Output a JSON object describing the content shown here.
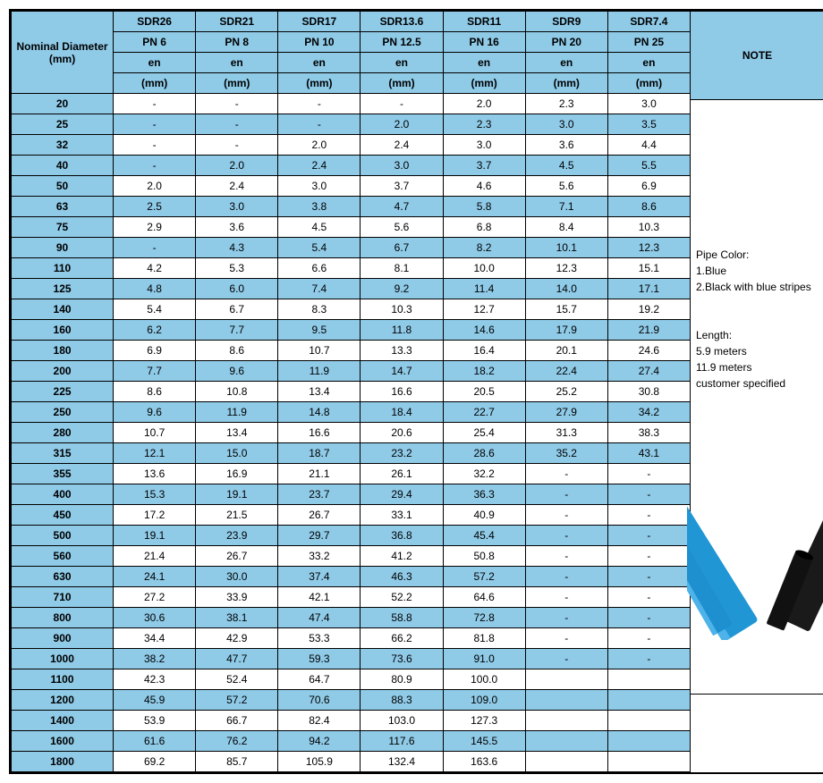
{
  "header": {
    "nominal": "Nominal Diameter (mm)",
    "note": "NOTE",
    "sdr": [
      "SDR26",
      "SDR21",
      "SDR17",
      "SDR13.6",
      "SDR11",
      "SDR9",
      "SDR7.4"
    ],
    "pn": [
      "PN 6",
      "PN 8",
      "PN 10",
      "PN 12.5",
      "PN 16",
      "PN 20",
      "PN 25"
    ],
    "en": "en",
    "en_unit": "(mm)"
  },
  "colors": {
    "header_bg": "#8fcae7",
    "border": "#000000",
    "alt_bg": "#8fcae7",
    "text": "#000000",
    "pipe_blue": "#2196d5",
    "pipe_black": "#1a1a1a"
  },
  "rows": [
    {
      "d": "20",
      "v": [
        "-",
        "-",
        "-",
        "-",
        "2.0",
        "2.3",
        "3.0"
      ],
      "alt": false
    },
    {
      "d": "25",
      "v": [
        "-",
        "-",
        "-",
        "2.0",
        "2.3",
        "3.0",
        "3.5"
      ],
      "alt": true
    },
    {
      "d": "32",
      "v": [
        "-",
        "-",
        "2.0",
        "2.4",
        "3.0",
        "3.6",
        "4.4"
      ],
      "alt": false
    },
    {
      "d": "40",
      "v": [
        "-",
        "2.0",
        "2.4",
        "3.0",
        "3.7",
        "4.5",
        "5.5"
      ],
      "alt": true
    },
    {
      "d": "50",
      "v": [
        "2.0",
        "2.4",
        "3.0",
        "3.7",
        "4.6",
        "5.6",
        "6.9"
      ],
      "alt": false
    },
    {
      "d": "63",
      "v": [
        "2.5",
        "3.0",
        "3.8",
        "4.7",
        "5.8",
        "7.1",
        "8.6"
      ],
      "alt": true
    },
    {
      "d": "75",
      "v": [
        "2.9",
        "3.6",
        "4.5",
        "5.6",
        "6.8",
        "8.4",
        "10.3"
      ],
      "alt": false
    },
    {
      "d": "90",
      "v": [
        "-",
        "4.3",
        "5.4",
        "6.7",
        "8.2",
        "10.1",
        "12.3"
      ],
      "alt": true
    },
    {
      "d": "110",
      "v": [
        "4.2",
        "5.3",
        "6.6",
        "8.1",
        "10.0",
        "12.3",
        "15.1"
      ],
      "alt": false
    },
    {
      "d": "125",
      "v": [
        "4.8",
        "6.0",
        "7.4",
        "9.2",
        "11.4",
        "14.0",
        "17.1"
      ],
      "alt": true
    },
    {
      "d": "140",
      "v": [
        "5.4",
        "6.7",
        "8.3",
        "10.3",
        "12.7",
        "15.7",
        "19.2"
      ],
      "alt": false
    },
    {
      "d": "160",
      "v": [
        "6.2",
        "7.7",
        "9.5",
        "11.8",
        "14.6",
        "17.9",
        "21.9"
      ],
      "alt": true
    },
    {
      "d": "180",
      "v": [
        "6.9",
        "8.6",
        "10.7",
        "13.3",
        "16.4",
        "20.1",
        "24.6"
      ],
      "alt": false
    },
    {
      "d": "200",
      "v": [
        "7.7",
        "9.6",
        "11.9",
        "14.7",
        "18.2",
        "22.4",
        "27.4"
      ],
      "alt": true
    },
    {
      "d": "225",
      "v": [
        "8.6",
        "10.8",
        "13.4",
        "16.6",
        "20.5",
        "25.2",
        "30.8"
      ],
      "alt": false
    },
    {
      "d": "250",
      "v": [
        "9.6",
        "11.9",
        "14.8",
        "18.4",
        "22.7",
        "27.9",
        "34.2"
      ],
      "alt": true
    },
    {
      "d": "280",
      "v": [
        "10.7",
        "13.4",
        "16.6",
        "20.6",
        "25.4",
        "31.3",
        "38.3"
      ],
      "alt": false
    },
    {
      "d": "315",
      "v": [
        "12.1",
        "15.0",
        "18.7",
        "23.2",
        "28.6",
        "35.2",
        "43.1"
      ],
      "alt": true
    },
    {
      "d": "355",
      "v": [
        "13.6",
        "16.9",
        "21.1",
        "26.1",
        "32.2",
        "-",
        "-"
      ],
      "alt": false
    },
    {
      "d": "400",
      "v": [
        "15.3",
        "19.1",
        "23.7",
        "29.4",
        "36.3",
        "-",
        "-"
      ],
      "alt": true
    },
    {
      "d": "450",
      "v": [
        "17.2",
        "21.5",
        "26.7",
        "33.1",
        "40.9",
        "-",
        "-"
      ],
      "alt": false
    },
    {
      "d": "500",
      "v": [
        "19.1",
        "23.9",
        "29.7",
        "36.8",
        "45.4",
        "-",
        "-"
      ],
      "alt": true
    },
    {
      "d": "560",
      "v": [
        "21.4",
        "26.7",
        "33.2",
        "41.2",
        "50.8",
        "-",
        "-"
      ],
      "alt": false
    },
    {
      "d": "630",
      "v": [
        "24.1",
        "30.0",
        "37.4",
        "46.3",
        "57.2",
        "-",
        "-"
      ],
      "alt": true
    },
    {
      "d": "710",
      "v": [
        "27.2",
        "33.9",
        "42.1",
        "52.2",
        "64.6",
        "-",
        "-"
      ],
      "alt": false
    },
    {
      "d": "800",
      "v": [
        "30.6",
        "38.1",
        "47.4",
        "58.8",
        "72.8",
        "-",
        "-"
      ],
      "alt": true
    },
    {
      "d": "900",
      "v": [
        "34.4",
        "42.9",
        "53.3",
        "66.2",
        "81.8",
        "-",
        "-"
      ],
      "alt": false
    },
    {
      "d": "1000",
      "v": [
        "38.2",
        "47.7",
        "59.3",
        "73.6",
        "91.0",
        "-",
        "-"
      ],
      "alt": true
    },
    {
      "d": "1100",
      "v": [
        "42.3",
        "52.4",
        "64.7",
        "80.9",
        "100.0",
        "",
        ""
      ],
      "alt": false
    },
    {
      "d": "1200",
      "v": [
        "45.9",
        "57.2",
        "70.6",
        "88.3",
        "109.0",
        "",
        ""
      ],
      "alt": true
    },
    {
      "d": "1400",
      "v": [
        "53.9",
        "66.7",
        "82.4",
        "103.0",
        "127.3",
        "",
        ""
      ],
      "alt": false
    },
    {
      "d": "1600",
      "v": [
        "61.6",
        "76.2",
        "94.2",
        "117.6",
        "145.5",
        "",
        ""
      ],
      "alt": true
    },
    {
      "d": "1800",
      "v": [
        "69.2",
        "85.7",
        "105.9",
        "132.4",
        "163.6",
        "",
        ""
      ],
      "alt": false
    }
  ],
  "note_text": {
    "l1": "Pipe Color:",
    "l2": "1.Blue",
    "l3": "2.Black with blue stripes",
    "l4": "Length:",
    "l5": "5.9 meters",
    "l6": "11.9 meters",
    "l7": "customer specified"
  }
}
